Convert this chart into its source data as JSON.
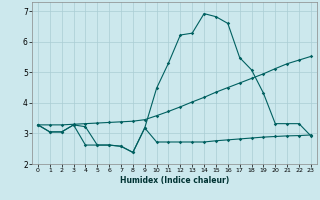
{
  "xlabel": "Humidex (Indice chaleur)",
  "xlim": [
    -0.5,
    23.5
  ],
  "ylim": [
    2,
    7.3
  ],
  "yticks": [
    2,
    3,
    4,
    5,
    6,
    7
  ],
  "xticks": [
    0,
    1,
    2,
    3,
    4,
    5,
    6,
    7,
    8,
    9,
    10,
    11,
    12,
    13,
    14,
    15,
    16,
    17,
    18,
    19,
    20,
    21,
    22,
    23
  ],
  "background_color": "#cce8ed",
  "grid_color": "#aacdd4",
  "line_color": "#006060",
  "line1_x": [
    0,
    1,
    2,
    3,
    4,
    5,
    6,
    7,
    8,
    9,
    10,
    11,
    12,
    13,
    14,
    15,
    16,
    17,
    18,
    19,
    20,
    21,
    22,
    23
  ],
  "line1_y": [
    3.28,
    3.05,
    3.05,
    3.28,
    2.62,
    2.62,
    2.62,
    2.58,
    2.38,
    3.18,
    2.72,
    2.72,
    2.72,
    2.72,
    2.72,
    2.76,
    2.79,
    2.82,
    2.85,
    2.88,
    2.9,
    2.92,
    2.93,
    2.95
  ],
  "line2_x": [
    0,
    1,
    2,
    3,
    4,
    5,
    6,
    7,
    8,
    9,
    10,
    11,
    12,
    13,
    14,
    15,
    16,
    17,
    18,
    19,
    20,
    21,
    22,
    23
  ],
  "line2_y": [
    3.28,
    3.05,
    3.05,
    3.28,
    3.22,
    2.62,
    2.62,
    2.58,
    2.38,
    3.18,
    4.48,
    5.3,
    6.22,
    6.28,
    6.92,
    6.82,
    6.6,
    5.48,
    5.08,
    4.32,
    3.32,
    3.32,
    3.32,
    2.92
  ],
  "line3_x": [
    0,
    1,
    2,
    3,
    4,
    5,
    6,
    7,
    8,
    9,
    10,
    11,
    12,
    13,
    14,
    15,
    16,
    17,
    18,
    19,
    20,
    21,
    22,
    23
  ],
  "line3_y": [
    3.28,
    3.28,
    3.28,
    3.3,
    3.32,
    3.34,
    3.36,
    3.38,
    3.4,
    3.45,
    3.58,
    3.72,
    3.87,
    4.03,
    4.18,
    4.35,
    4.5,
    4.65,
    4.8,
    4.95,
    5.12,
    5.28,
    5.4,
    5.52
  ]
}
